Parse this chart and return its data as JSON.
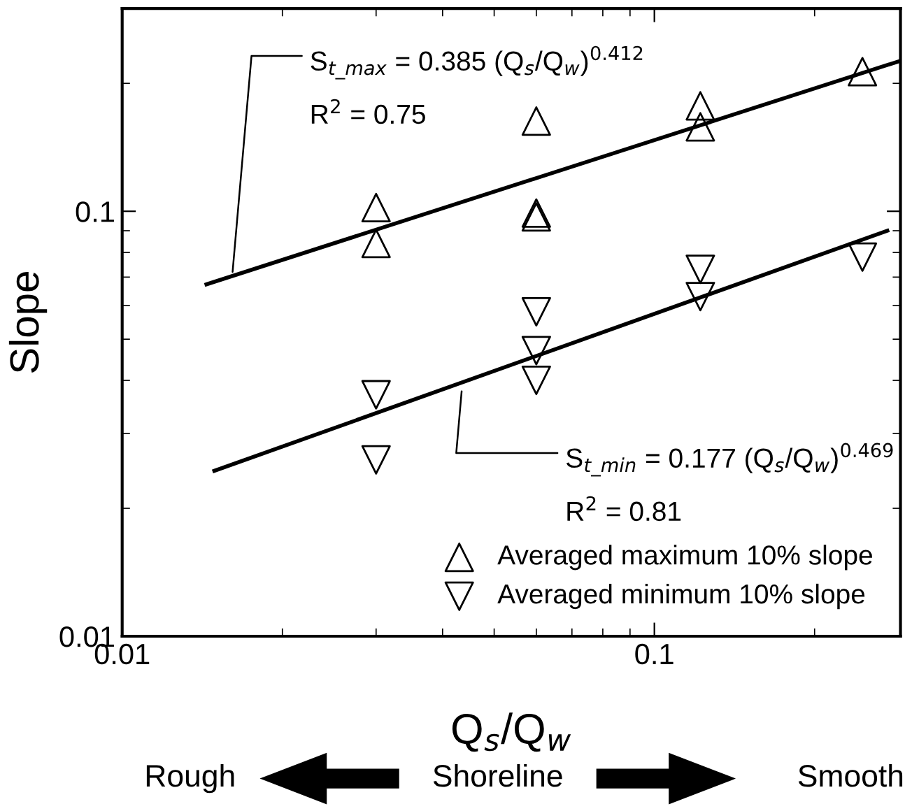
{
  "chart_data": {
    "type": "scatter",
    "xlabel": "Q$_{s}$/Q$_{w}$",
    "ylabel": "Slope",
    "log": "xy",
    "xlim": [
      0.01,
      0.29
    ],
    "ylim": [
      0.01,
      0.3
    ],
    "xticks": [
      0.01,
      0.1
    ],
    "yticks": [
      0.01,
      0.1
    ],
    "grid": false,
    "legend": "bottom right",
    "series": [
      {
        "name": "Averaged maximum 10% slope",
        "marker": "triangle",
        "color": "#000000",
        "x": [
          0.03,
          0.03,
          0.06,
          0.06,
          0.06,
          0.122,
          0.122,
          0.246
        ],
        "values": [
          0.102,
          0.084,
          0.163,
          0.099,
          0.097,
          0.177,
          0.158,
          0.213
        ]
      },
      {
        "name": "Averaged minimum 10% slope",
        "marker": "triangle_down",
        "color": "#000000",
        "x": [
          0.03,
          0.03,
          0.06,
          0.06,
          0.06,
          0.122,
          0.122,
          0.246
        ],
        "values": [
          0.037,
          0.026,
          0.058,
          0.047,
          0.04,
          0.073,
          0.063,
          0.078
        ]
      },
      {
        "type": "line",
        "color": "#000000",
        "x": [
          0.0144,
          0.29
        ],
        "values": [
          0.0673,
          0.226
        ]
      },
      {
        "type": "line",
        "color": "#000000",
        "x": [
          0.0149,
          0.274
        ],
        "values": [
          0.0245,
          0.09
        ]
      }
    ],
    "annotations": [
      {
        "text": "S$_{t_max}$ = 0.385 (Q$_{s}$/Q$_{w}$)$^{0.412}$",
        "x": 0.0161,
        "y": 0.0705
      },
      {
        "text": "S$_{t_min}$ = 0.177 (Q$_{s}$/Q$_{w}$)$^{0.469}$",
        "x": 0.0435,
        "y": 0.0385
      },
      "R$^{2}$ = 0.75",
      "R$^{2}$ = 0.81",
      "Rough",
      "Shoreline",
      "Smooth"
    ]
  }
}
